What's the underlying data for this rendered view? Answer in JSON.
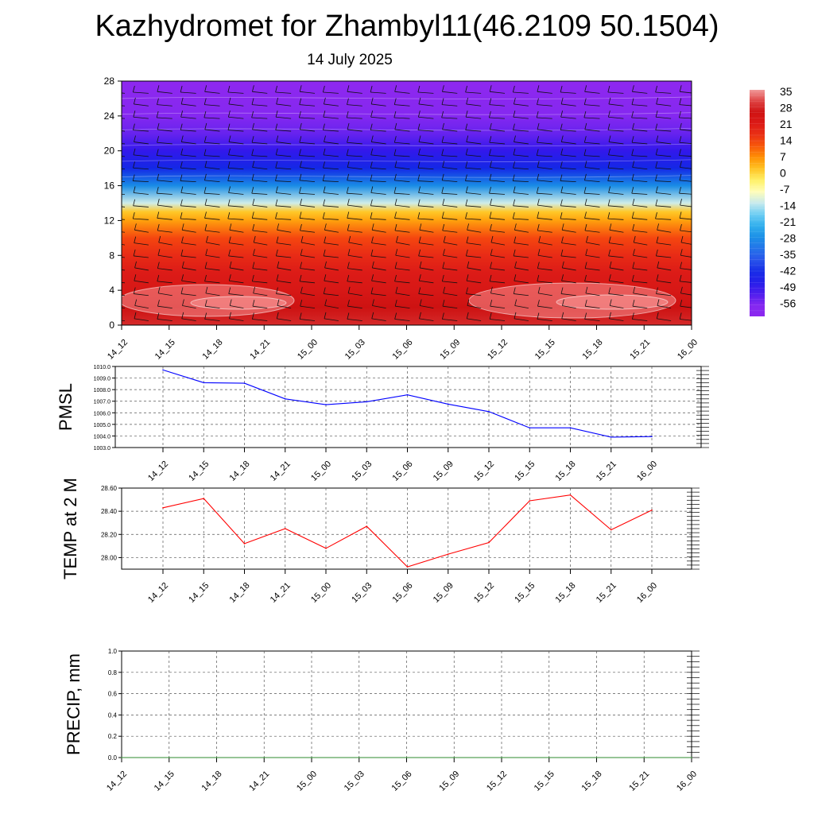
{
  "title": "Kazhydromet for Zhambyl11(46.2109 50.1504)",
  "subtitle": "14 July 2025",
  "time_labels": [
    "14_12",
    "14_15",
    "14_18",
    "14_21",
    "15_00",
    "15_03",
    "15_06",
    "15_09",
    "15_12",
    "15_15",
    "15_18",
    "15_21",
    "16_00"
  ],
  "chart_data": [
    {
      "type": "heatmap",
      "title": "",
      "xlabel": "",
      "ylabel": "",
      "x": [
        "14_12",
        "14_15",
        "14_18",
        "14_21",
        "15_00",
        "15_03",
        "15_06",
        "15_09",
        "15_12",
        "15_15",
        "15_18",
        "15_21",
        "16_00"
      ],
      "y_ticks": [
        0,
        4,
        8,
        12,
        16,
        20,
        24,
        28
      ],
      "ylim": [
        0,
        28
      ],
      "colorbar_labels": [
        "35",
        "28",
        "21",
        "14",
        "7",
        "0",
        "-7",
        "-14",
        "-21",
        "-28",
        "-35",
        "-42",
        "-49",
        "-56"
      ],
      "colorbar_colors": [
        "#f4a6a6",
        "#e02020",
        "#d81010",
        "#ee3a12",
        "#ff8a00",
        "#ffc020",
        "#fff590",
        "#d8f0ff",
        "#40b8ee",
        "#1a8ae0",
        "#3464e8",
        "#2030e8",
        "#3c1cee",
        "#8a32ee"
      ],
      "profile_temperature": {
        "levels": [
          0,
          2,
          4,
          6,
          8,
          10,
          12,
          13,
          14,
          16,
          18,
          20,
          22,
          24,
          26,
          28
        ],
        "values": [
          28,
          26,
          22,
          20,
          16,
          12,
          4,
          0,
          -14,
          -30,
          -45,
          -52,
          -56,
          -60,
          -63,
          -65
        ]
      },
      "wind_barbs": "shown",
      "grid": false
    },
    {
      "type": "line",
      "ylabel": "PMSL",
      "x": [
        "14_12",
        "14_15",
        "14_18",
        "14_21",
        "15_00",
        "15_03",
        "15_06",
        "15_09",
        "15_12",
        "15_15",
        "15_18",
        "15_21",
        "16_00"
      ],
      "series": [
        {
          "values": [
            1009.7,
            1008.6,
            1008.55,
            1007.2,
            1006.7,
            1006.95,
            1007.55,
            1006.75,
            1006.1,
            1004.7,
            1004.7,
            1003.9,
            1003.95
          ]
        }
      ],
      "ylim": [
        1003.0,
        1010.0
      ],
      "y_ticks": [
        "1003.0",
        "1004.0",
        "1005.0",
        "1006.0",
        "1007.0",
        "1008.0",
        "1009.0",
        "1010.0"
      ],
      "line_color": "#0000ff",
      "grid": true
    },
    {
      "type": "line",
      "ylabel": "TEMP at 2 M",
      "x": [
        "14_12",
        "14_15",
        "14_18",
        "14_21",
        "15_00",
        "15_03",
        "15_06",
        "15_09",
        "15_12",
        "15_15",
        "15_18",
        "15_21",
        "16_00"
      ],
      "series": [
        {
          "values": [
            28.43,
            28.51,
            28.12,
            28.25,
            28.08,
            28.27,
            27.92,
            28.03,
            28.13,
            28.49,
            28.54,
            28.24,
            28.41
          ]
        }
      ],
      "ylim": [
        27.9,
        28.6
      ],
      "y_ticks": [
        "28.00",
        "28.20",
        "28.40",
        "28.60"
      ],
      "line_color": "#ff0000",
      "grid": true
    },
    {
      "type": "line",
      "ylabel": "PRECIP, mm",
      "x": [
        "14_12",
        "14_15",
        "14_18",
        "14_21",
        "15_00",
        "15_03",
        "15_06",
        "15_09",
        "15_12",
        "15_15",
        "15_18",
        "15_21",
        "16_00"
      ],
      "series": [
        {
          "values": [
            0,
            0,
            0,
            0,
            0,
            0,
            0,
            0,
            0,
            0,
            0,
            0,
            0
          ]
        }
      ],
      "ylim": [
        0,
        1
      ],
      "y_ticks": [
        "0.0",
        "0.2",
        "0.4",
        "0.6",
        "0.8",
        "1.0"
      ],
      "line_color": "#2e8b2e",
      "grid": true
    }
  ]
}
